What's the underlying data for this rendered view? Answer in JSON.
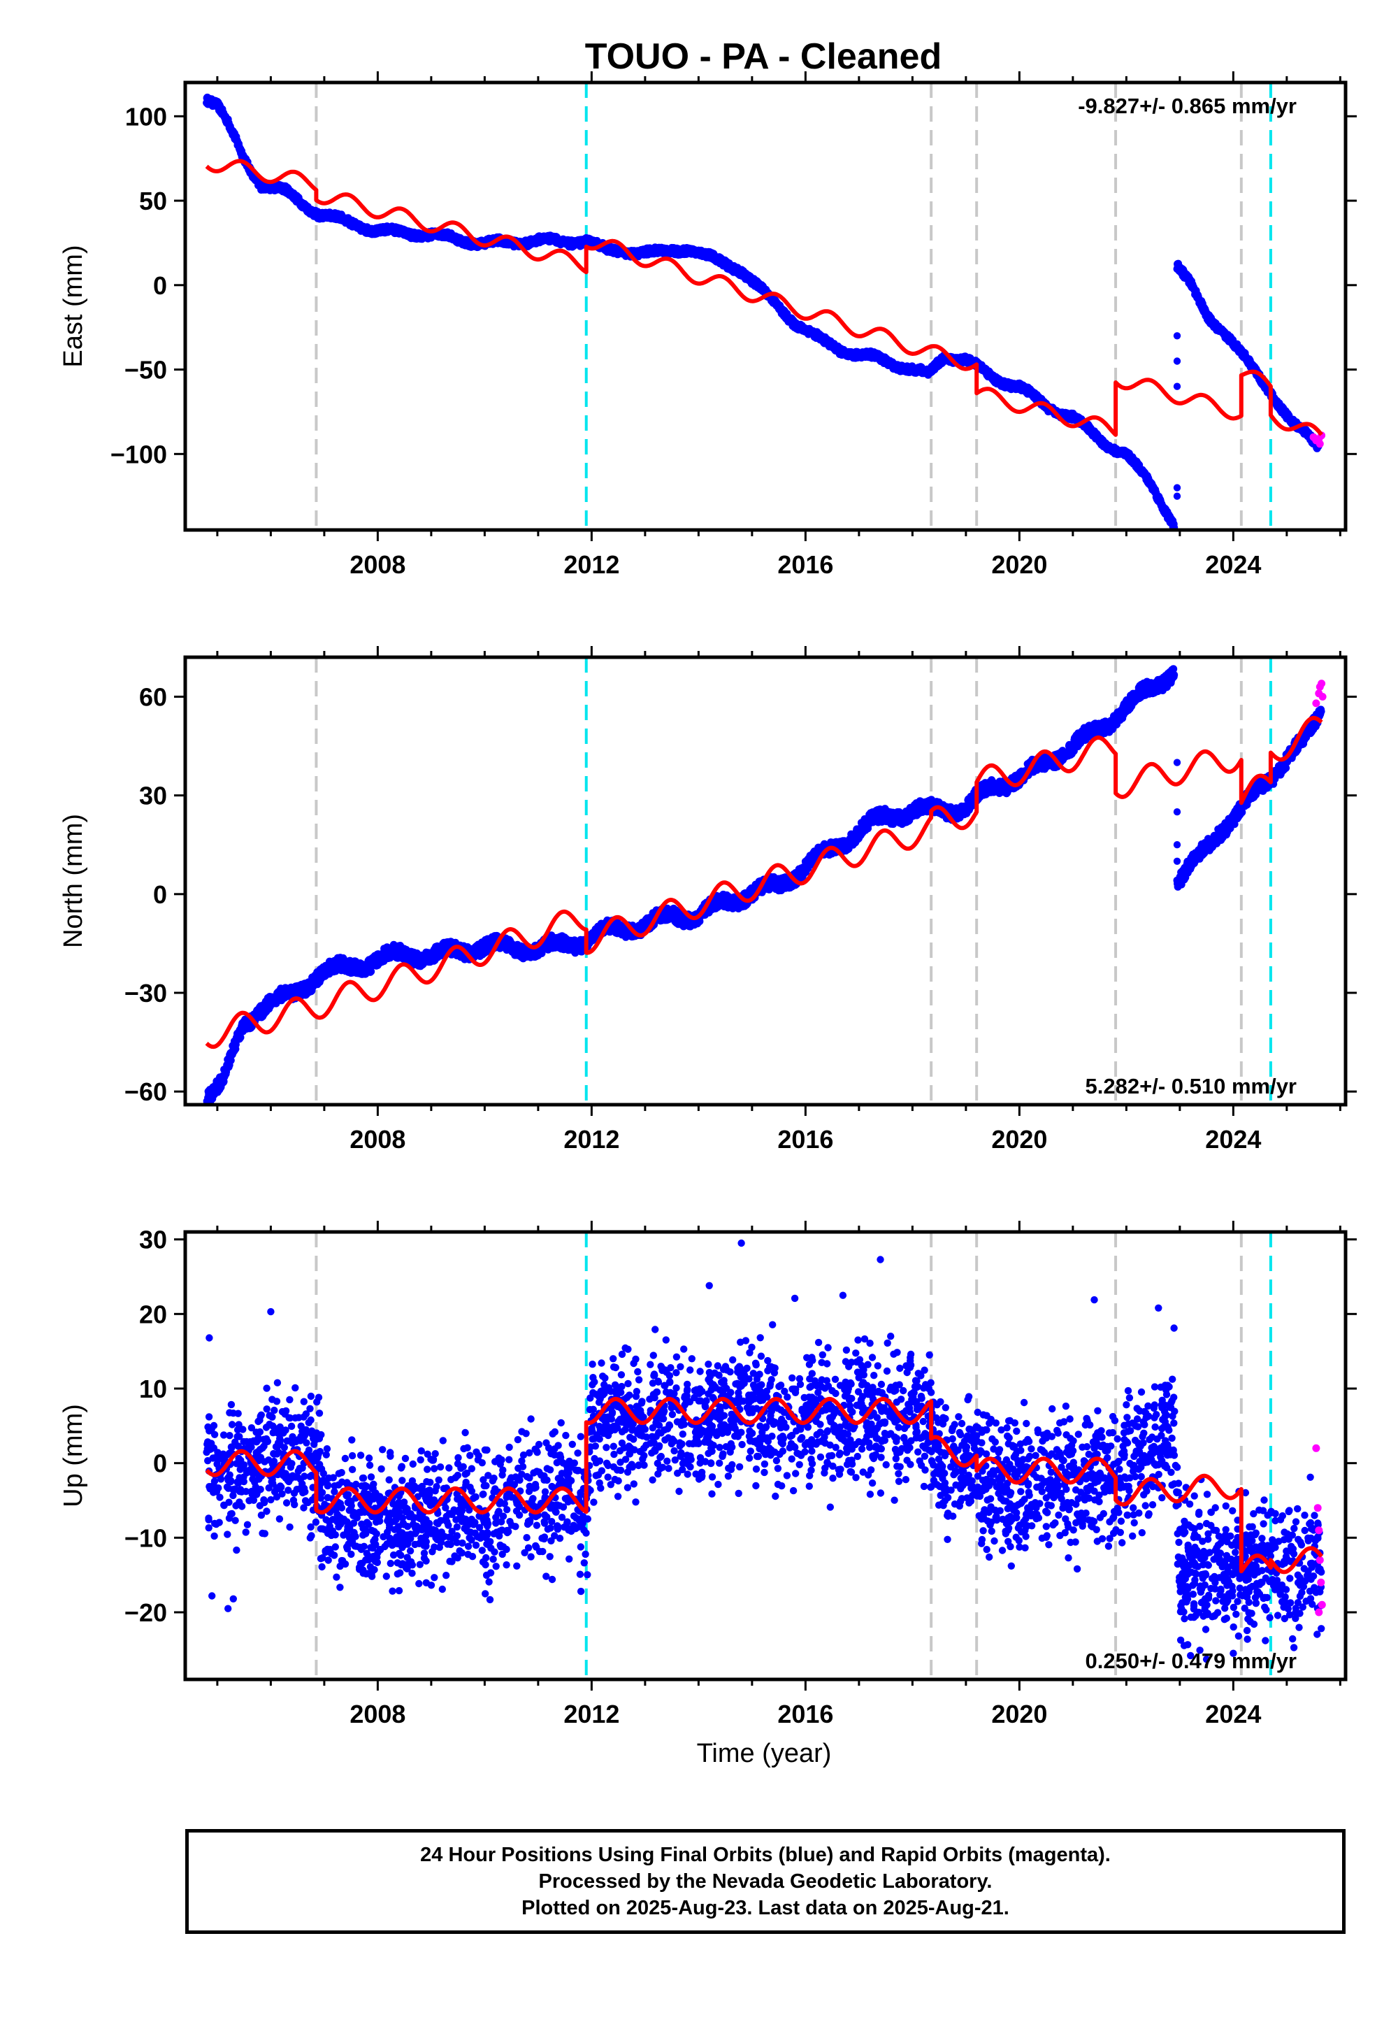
{
  "title": "TOUO  - PA - Cleaned",
  "xlabel": "Time (year)",
  "colors": {
    "final_orbits": "#0000ff",
    "rapid_orbits": "#ff00ff",
    "model": "#ff0000",
    "gray_dash": "#c8c8c8",
    "cyan_dash": "#00e5ee"
  },
  "footer": {
    "line1": "24 Hour Positions Using Final Orbits (blue) and Rapid Orbits (magenta).",
    "line2": "Processed by the Nevada Geodetic Laboratory.",
    "line3": "Plotted on 2025-Aug-23. Last data on 2025-Aug-21."
  },
  "chart_data": [
    {
      "type": "scatter",
      "panel": "east",
      "ylabel": "East (mm)",
      "rate_text": "-9.827+/- 0.865 mm/yr",
      "xlim": [
        2004.4,
        2026.1
      ],
      "ylim": [
        -145,
        120
      ],
      "xticks": [
        2008,
        2012,
        2016,
        2020,
        2024
      ],
      "yticks": [
        100,
        50,
        0,
        -50,
        -100
      ],
      "ytick_labels": [
        "100",
        "50",
        "0",
        "−50",
        "−100"
      ],
      "gray_lines": [
        2006.85,
        2018.35,
        2019.2,
        2021.8,
        2024.15
      ],
      "cyan_lines": [
        2011.9,
        2024.7
      ],
      "final_trace": [
        [
          2004.8,
          111
        ],
        [
          2005.0,
          107
        ],
        [
          2005.2,
          95
        ],
        [
          2005.5,
          75
        ],
        [
          2005.8,
          60
        ],
        [
          2006.3,
          55
        ],
        [
          2006.9,
          42
        ],
        [
          2007.5,
          37
        ],
        [
          2008.0,
          32
        ],
        [
          2008.5,
          31
        ],
        [
          2009.0,
          30
        ],
        [
          2009.5,
          27
        ],
        [
          2010.0,
          25
        ],
        [
          2010.5,
          25
        ],
        [
          2011.0,
          27
        ],
        [
          2011.5,
          25
        ],
        [
          2011.9,
          27
        ],
        [
          2012.3,
          20
        ],
        [
          2012.8,
          20
        ],
        [
          2013.3,
          19
        ],
        [
          2013.8,
          22
        ],
        [
          2014.3,
          15
        ],
        [
          2014.8,
          9
        ],
        [
          2015.3,
          -7
        ],
        [
          2015.8,
          -22
        ],
        [
          2016.3,
          -33
        ],
        [
          2016.8,
          -40
        ],
        [
          2017.3,
          -43
        ],
        [
          2017.8,
          -48
        ],
        [
          2018.3,
          -53
        ],
        [
          2018.6,
          -42
        ],
        [
          2019.0,
          -44
        ],
        [
          2019.5,
          -55
        ],
        [
          2020.0,
          -60
        ],
        [
          2020.5,
          -72
        ],
        [
          2021.0,
          -78
        ],
        [
          2021.5,
          -92
        ],
        [
          2022.0,
          -100
        ],
        [
          2022.5,
          -120
        ],
        [
          2022.9,
          -142
        ]
      ],
      "final_trace_b": [
        [
          2022.95,
          12
        ],
        [
          2023.2,
          0
        ],
        [
          2023.5,
          -18
        ],
        [
          2023.9,
          -30
        ],
        [
          2024.3,
          -47
        ],
        [
          2024.7,
          -63
        ],
        [
          2025.1,
          -82
        ],
        [
          2025.6,
          -95
        ]
      ],
      "jump_points": [
        [
          2022.95,
          -30
        ],
        [
          2022.95,
          -45
        ],
        [
          2022.95,
          -60
        ],
        [
          2022.95,
          -120
        ],
        [
          2022.95,
          -125
        ]
      ],
      "rapid_points": [
        [
          2025.5,
          -90
        ],
        [
          2025.55,
          -92
        ],
        [
          2025.6,
          -91
        ],
        [
          2025.62,
          -94
        ],
        [
          2025.65,
          -89
        ]
      ],
      "model_steps": [
        {
          "x0": 2004.8,
          "x1": 2006.85,
          "y0": 73,
          "y1": 60
        },
        {
          "x0": 2006.85,
          "x1": 2011.9,
          "y0": 54,
          "y1": 12
        },
        {
          "x0": 2011.9,
          "x1": 2018.35,
          "y0": 27,
          "y1": -40
        },
        {
          "x0": 2018.35,
          "x1": 2019.2,
          "y0": -40,
          "y1": -47
        },
        {
          "x0": 2019.2,
          "x1": 2021.8,
          "y0": -64,
          "y1": -86
        },
        {
          "x0": 2021.8,
          "x1": 2024.15,
          "y0": -55,
          "y1": -76
        },
        {
          "x0": 2024.15,
          "x1": 2024.7,
          "y0": -52,
          "y1": -60
        },
        {
          "x0": 2024.7,
          "x1": 2025.65,
          "y0": -77,
          "y1": -90
        }
      ],
      "model_amp": 4.5
    },
    {
      "type": "scatter",
      "panel": "north",
      "ylabel": "North (mm)",
      "rate_text": "5.282+/- 0.510 mm/yr",
      "xlim": [
        2004.4,
        2026.1
      ],
      "ylim": [
        -64,
        72
      ],
      "xticks": [
        2008,
        2012,
        2016,
        2020,
        2024
      ],
      "yticks": [
        60,
        30,
        0,
        -30,
        -60
      ],
      "ytick_labels": [
        "60",
        "30",
        "0",
        "−30",
        "−60"
      ],
      "gray_lines": [
        2006.85,
        2018.35,
        2019.2,
        2021.8,
        2024.15
      ],
      "cyan_lines": [
        2011.9,
        2024.7
      ],
      "final_trace": [
        [
          2004.8,
          -61
        ],
        [
          2005.1,
          -57
        ],
        [
          2005.5,
          -40
        ],
        [
          2005.9,
          -33
        ],
        [
          2006.4,
          -31
        ],
        [
          2006.9,
          -24
        ],
        [
          2007.5,
          -22
        ],
        [
          2008.0,
          -20
        ],
        [
          2008.5,
          -18
        ],
        [
          2009.0,
          -19
        ],
        [
          2009.5,
          -17
        ],
        [
          2010.0,
          -16
        ],
        [
          2010.5,
          -16
        ],
        [
          2011.0,
          -17
        ],
        [
          2011.5,
          -15
        ],
        [
          2011.9,
          -14
        ],
        [
          2012.5,
          -10
        ],
        [
          2013.0,
          -10
        ],
        [
          2013.5,
          -6
        ],
        [
          2014.0,
          -7
        ],
        [
          2014.5,
          -2
        ],
        [
          2015.0,
          0
        ],
        [
          2015.5,
          3
        ],
        [
          2016.0,
          8
        ],
        [
          2016.5,
          14
        ],
        [
          2017.0,
          19
        ],
        [
          2017.5,
          24
        ],
        [
          2018.0,
          25
        ],
        [
          2018.5,
          26
        ],
        [
          2019.0,
          26
        ],
        [
          2019.5,
          33
        ],
        [
          2020.0,
          35
        ],
        [
          2020.5,
          40
        ],
        [
          2021.0,
          45
        ],
        [
          2021.5,
          50
        ],
        [
          2022.0,
          57
        ],
        [
          2022.5,
          63
        ],
        [
          2022.9,
          68
        ]
      ],
      "final_trace_b": [
        [
          2022.95,
          3
        ],
        [
          2023.3,
          10
        ],
        [
          2023.7,
          19
        ],
        [
          2024.1,
          24
        ],
        [
          2024.5,
          33
        ],
        [
          2024.9,
          39
        ],
        [
          2025.3,
          46
        ],
        [
          2025.65,
          56
        ]
      ],
      "jump_points": [
        [
          2022.95,
          40
        ],
        [
          2022.95,
          25
        ],
        [
          2022.95,
          15
        ],
        [
          2022.95,
          10
        ]
      ],
      "rapid_points": [
        [
          2025.55,
          58
        ],
        [
          2025.6,
          61
        ],
        [
          2025.62,
          63
        ],
        [
          2025.65,
          64
        ],
        [
          2025.67,
          60
        ]
      ],
      "model_steps": [
        {
          "x0": 2004.8,
          "x1": 2006.85,
          "y0": -43,
          "y1": -34
        },
        {
          "x0": 2006.85,
          "x1": 2011.9,
          "y0": -34,
          "y1": -7
        },
        {
          "x0": 2011.9,
          "x1": 2018.35,
          "y0": -14,
          "y1": 20
        },
        {
          "x0": 2018.35,
          "x1": 2019.2,
          "y0": 22,
          "y1": 25
        },
        {
          "x0": 2019.2,
          "x1": 2021.8,
          "y0": 34,
          "y1": 45
        },
        {
          "x0": 2021.8,
          "x1": 2024.15,
          "y0": 33,
          "y1": 42
        },
        {
          "x0": 2024.15,
          "x1": 2024.7,
          "y0": 29,
          "y1": 34
        },
        {
          "x0": 2024.7,
          "x1": 2025.65,
          "y0": 43,
          "y1": 51
        }
      ],
      "model_amp": 4
    },
    {
      "type": "scatter",
      "panel": "up",
      "ylabel": "Up (mm)",
      "rate_text": "0.250+/- 0.479 mm/yr",
      "xlim": [
        2004.4,
        2026.1
      ],
      "ylim": [
        -29,
        31
      ],
      "xticks": [
        2008,
        2012,
        2016,
        2020,
        2024
      ],
      "yticks": [
        30,
        20,
        10,
        0,
        -10,
        -20
      ],
      "ytick_labels": [
        "30",
        "20",
        "10",
        "0",
        "−10",
        "−20"
      ],
      "gray_lines": [
        2006.85,
        2018.35,
        2019.2,
        2021.8,
        2024.15
      ],
      "cyan_lines": [
        2011.9,
        2024.7
      ],
      "mean_trace": [
        [
          2004.8,
          -1
        ],
        [
          2005.5,
          -1
        ],
        [
          2006.0,
          1
        ],
        [
          2006.85,
          0
        ],
        [
          2007.0,
          -6
        ],
        [
          2008.0,
          -8
        ],
        [
          2009.0,
          -7
        ],
        [
          2010.0,
          -6
        ],
        [
          2011.0,
          -5
        ],
        [
          2011.9,
          -5
        ],
        [
          2012.0,
          5
        ],
        [
          2013.0,
          6
        ],
        [
          2014.0,
          6
        ],
        [
          2015.0,
          7
        ],
        [
          2016.0,
          6
        ],
        [
          2017.0,
          6
        ],
        [
          2018.0,
          6
        ],
        [
          2018.35,
          5
        ],
        [
          2018.4,
          0
        ],
        [
          2019.2,
          -1
        ],
        [
          2019.3,
          -3
        ],
        [
          2020.0,
          -3
        ],
        [
          2021.0,
          -2
        ],
        [
          2021.8,
          -2
        ],
        [
          2022.0,
          -1
        ],
        [
          2022.5,
          2
        ],
        [
          2022.9,
          6
        ],
        [
          2023.0,
          -14
        ],
        [
          2024.0,
          -15
        ],
        [
          2024.15,
          -14
        ],
        [
          2024.7,
          -13
        ],
        [
          2025.65,
          -14
        ]
      ],
      "noise": 4.2,
      "outliers": [
        [
          2004.85,
          16.8
        ],
        [
          2006.0,
          20.3
        ],
        [
          2014.8,
          29.5
        ],
        [
          2014.2,
          23.8
        ],
        [
          2017.4,
          27.3
        ],
        [
          2015.8,
          22.1
        ],
        [
          2016.7,
          22.5
        ],
        [
          2021.4,
          21.9
        ],
        [
          2022.6,
          20.8
        ],
        [
          2004.9,
          -17.8
        ],
        [
          2005.2,
          -19.5
        ],
        [
          2005.3,
          -18.2
        ],
        [
          2008.4,
          -17.1
        ],
        [
          2010.1,
          -18.3
        ],
        [
          2011.8,
          -17.2
        ],
        [
          2023.2,
          -25.8
        ],
        [
          2023.5,
          -26.3
        ],
        [
          2024.0,
          -25.5
        ],
        [
          2024.6,
          -23.8
        ]
      ],
      "rapid_points": [
        [
          2025.55,
          2
        ],
        [
          2025.58,
          -6
        ],
        [
          2025.6,
          -9
        ],
        [
          2025.62,
          -13
        ],
        [
          2025.64,
          -16
        ],
        [
          2025.66,
          -19
        ],
        [
          2025.6,
          -20
        ]
      ],
      "model_steps": [
        {
          "x0": 2004.8,
          "x1": 2006.85,
          "y0": 0,
          "y1": 0
        },
        {
          "x0": 2006.85,
          "x1": 2011.9,
          "y0": -5,
          "y1": -5
        },
        {
          "x0": 2011.9,
          "x1": 2018.35,
          "y0": 7,
          "y1": 7
        },
        {
          "x0": 2018.35,
          "x1": 2019.2,
          "y0": 2,
          "y1": 1
        },
        {
          "x0": 2019.2,
          "x1": 2021.8,
          "y0": -1,
          "y1": -1
        },
        {
          "x0": 2021.8,
          "x1": 2024.15,
          "y0": -4,
          "y1": -3
        },
        {
          "x0": 2024.15,
          "x1": 2024.7,
          "y0": -14,
          "y1": -14
        },
        {
          "x0": 2024.7,
          "x1": 2025.65,
          "y0": -13,
          "y1": -13
        }
      ],
      "model_amp": 1.6
    }
  ]
}
